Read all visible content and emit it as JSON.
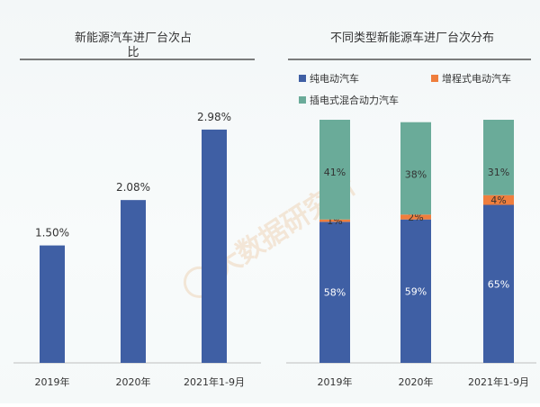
{
  "watermark": "大数据研究所",
  "chart_data": [
    {
      "type": "bar",
      "title": "新能源汽车进厂台次占比",
      "title_line1": "新能源汽车进厂台次占",
      "title_line2": "比",
      "categories": [
        "2019年",
        "2020年",
        "2021年1-9月"
      ],
      "values": [
        1.5,
        2.08,
        2.98
      ],
      "data_labels": [
        "1.50%",
        "2.08%",
        "2.98%"
      ],
      "ylim": [
        0,
        3.6
      ],
      "grid": false,
      "color": "#3f5fa4"
    },
    {
      "type": "bar",
      "stacked": true,
      "percent_stacked": true,
      "title": "不同类型新能源车进厂台次分布",
      "categories": [
        "2019年",
        "2020年",
        "2021年1-9月"
      ],
      "legend_position": "top-left",
      "grid": false,
      "series": [
        {
          "name": "纯电动汽车",
          "color": "#3f5fa4",
          "values": [
            58,
            59,
            65
          ],
          "labels": [
            "58%",
            "59%",
            "65%"
          ]
        },
        {
          "name": "增程式电动汽车",
          "color": "#ef7e3d",
          "values": [
            1,
            2,
            4
          ],
          "labels": [
            "1%",
            "2%",
            "4%"
          ]
        },
        {
          "name": "插电式混合动力汽车",
          "color": "#6aab99",
          "values": [
            41,
            38,
            31
          ],
          "labels": [
            "41%",
            "38%",
            "31%"
          ]
        }
      ]
    }
  ]
}
